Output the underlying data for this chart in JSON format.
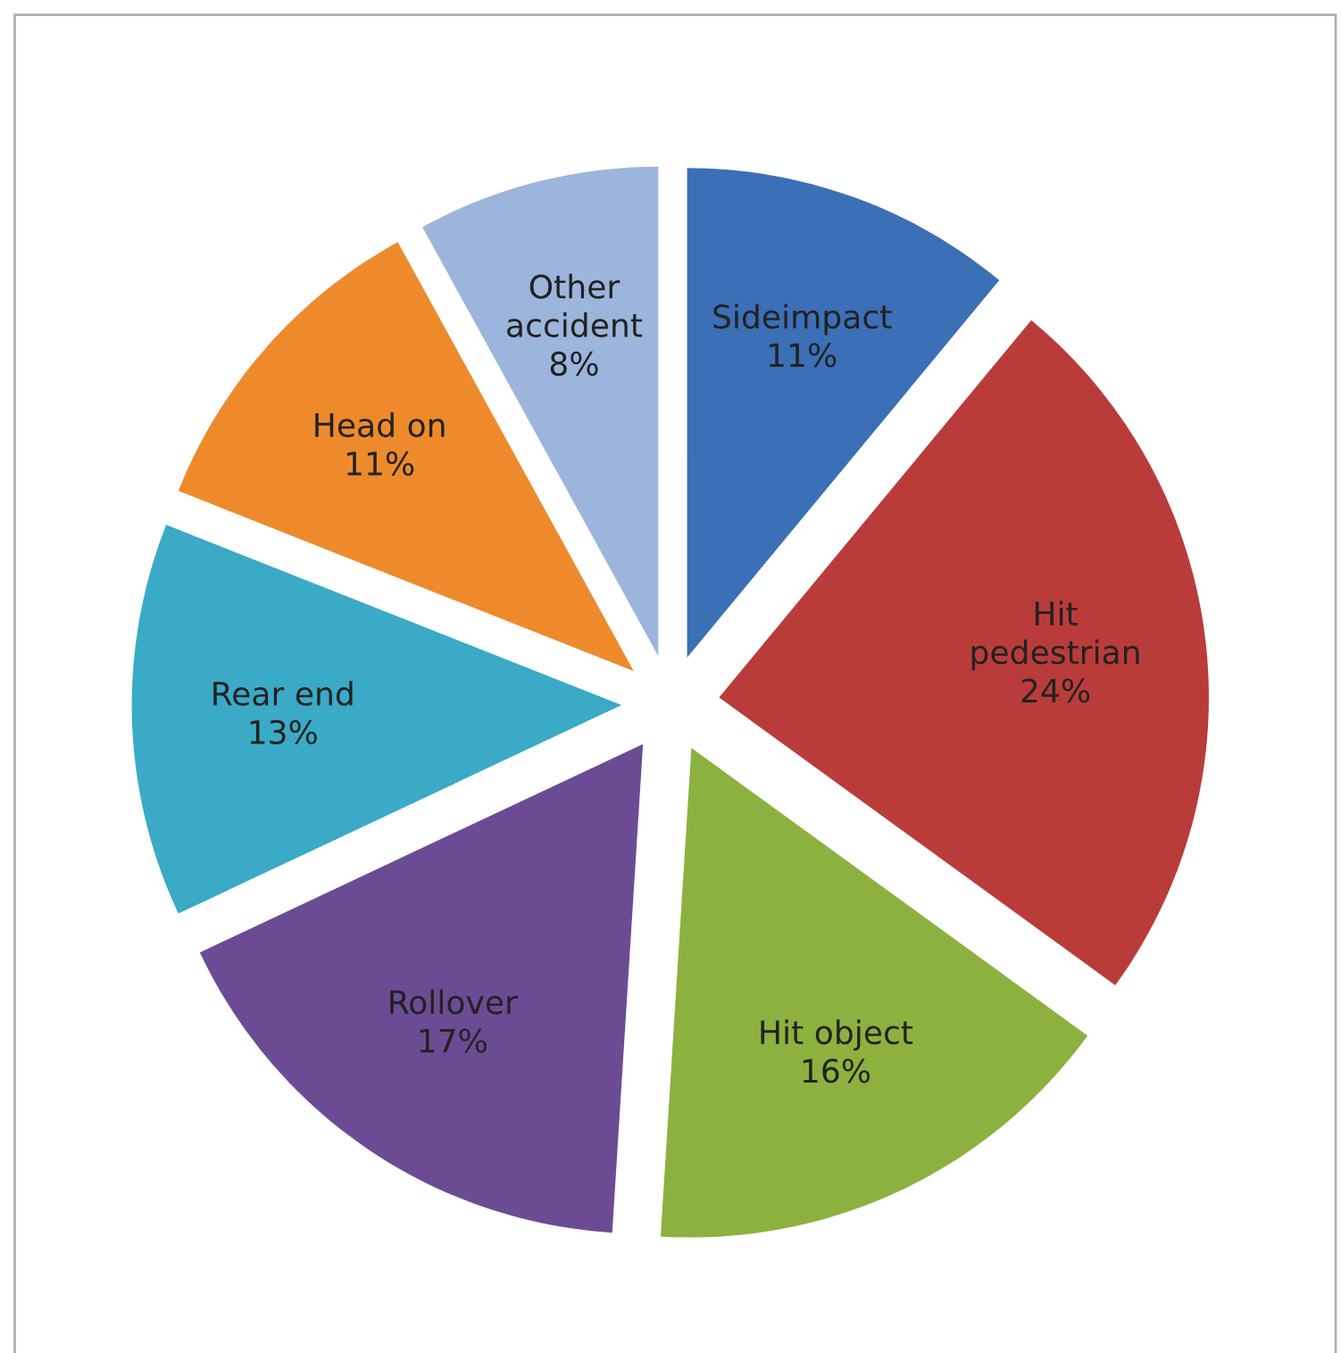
{
  "chart_data": {
    "type": "pie",
    "categories": [
      "Sideimpact",
      "Hit\npedestrian",
      "Hit object",
      "Rollover",
      "Rear end",
      "Head on",
      "Other\naccident"
    ],
    "values": [
      11,
      24,
      16,
      17,
      13,
      11,
      8
    ],
    "value_labels": [
      "11%",
      "24%",
      "16%",
      "17%",
      "13%",
      "11%",
      "8%"
    ],
    "colors": [
      "#3b6fb6",
      "#b93c3a",
      "#8db13e",
      "#6b4c94",
      "#3aaac6",
      "#ee8a2c",
      "#9cb5dc"
    ],
    "legend": false
  }
}
